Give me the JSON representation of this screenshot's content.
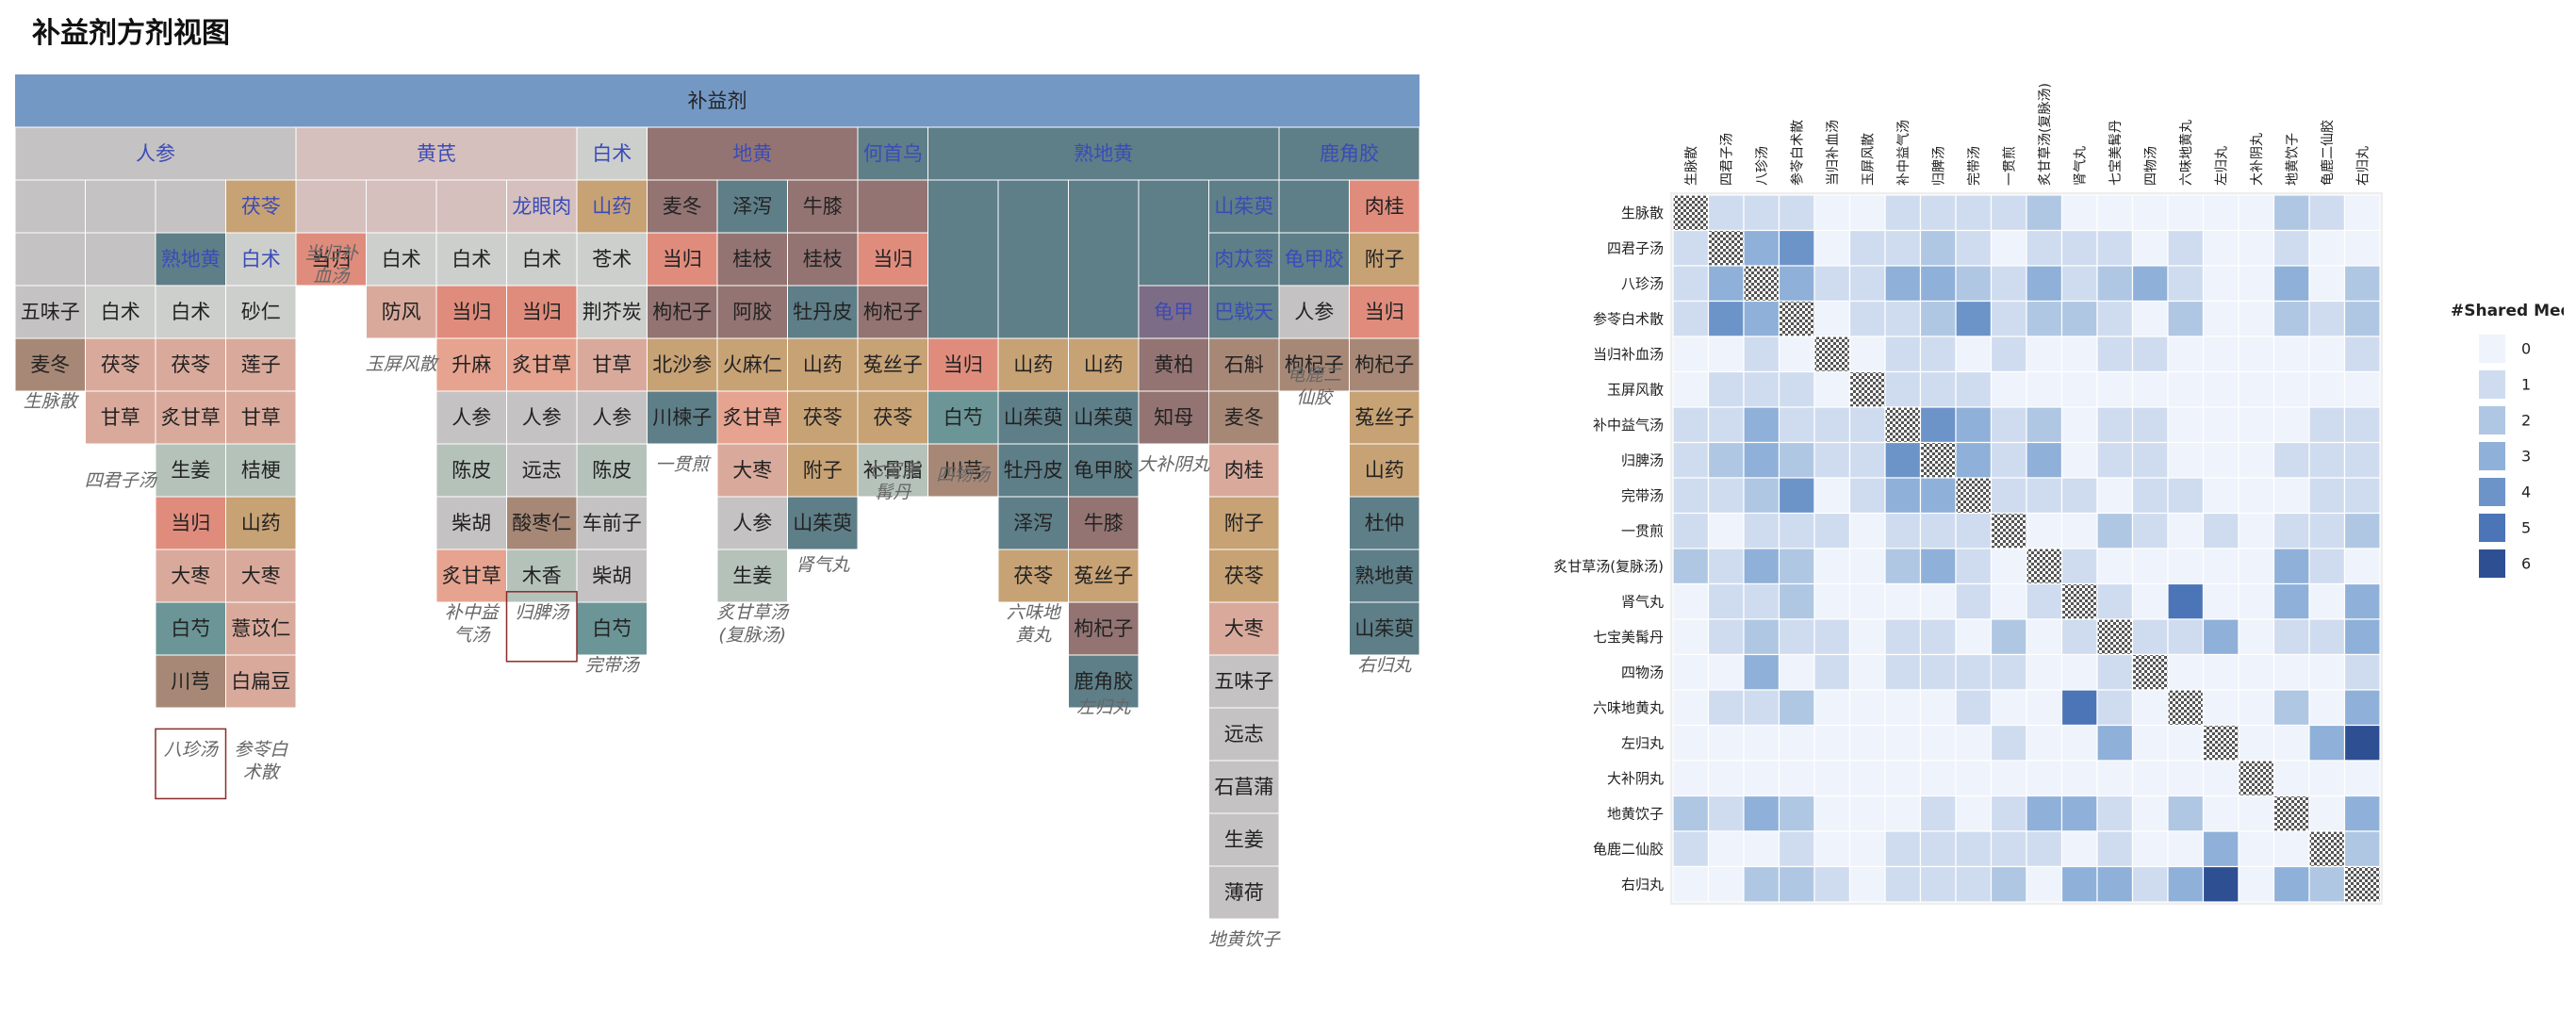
{
  "title": "补益剂方剂视图",
  "highlight_formula": "八珍汤",
  "chart_data": [
    {
      "type": "table",
      "name": "formula-herb-hierarchy",
      "root": "补益剂",
      "colors": {
        "root": "#7498c4",
        "gray": "#c4c2c2",
        "lightgray": "#cdcfcd",
        "pink": "#d5c0bd",
        "taupe": "#937472",
        "slate": "#5e7e88",
        "teal": "#6b9597",
        "tan": "#c7a275",
        "coral": "#e08c7c",
        "salmon": "#e6a38f",
        "rose": "#d9aa9c",
        "sage": "#b5c2b9",
        "brownish": "#a78877",
        "darkpurple": "#7d6c85",
        "gridline": "#ffffff",
        "text_dark": "#222222",
        "text_blue": "#3b4bb8",
        "highlight_border": "#8a2b2b"
      },
      "level2_groups": [
        {
          "label": "人参",
          "span": [
            0,
            4
          ]
        },
        {
          "label": "黄芪",
          "span": [
            4,
            8
          ]
        },
        {
          "label": "白术",
          "span": [
            8,
            9
          ]
        },
        {
          "label": "地黄",
          "span": [
            9,
            12
          ]
        },
        {
          "label": "何首乌",
          "span": [
            12,
            13
          ]
        },
        {
          "label": "熟地黄",
          "span": [
            13,
            18
          ]
        },
        {
          "label": "鹿角胶",
          "span": [
            18,
            20
          ]
        }
      ],
      "formulas": [
        {
          "name": "生脉散",
          "herbs": [
            "五味子",
            "麦冬"
          ]
        },
        {
          "name": "四君子汤",
          "herbs": [
            "白术",
            "茯苓",
            "甘草"
          ]
        },
        {
          "name": "八珍汤",
          "herbs": [
            "熟地黄",
            "白术",
            "茯苓",
            "炙甘草",
            "生姜",
            "当归",
            "大枣",
            "白芍",
            "川芎"
          ]
        },
        {
          "name": "参苓白术散",
          "herbs": [
            "茯苓",
            "白术",
            "砂仁",
            "莲子",
            "甘草",
            "桔梗",
            "山药",
            "大枣",
            "薏苡仁",
            "白扁豆"
          ]
        },
        {
          "name": "当归补血汤",
          "herbs": [
            "当归"
          ]
        },
        {
          "name": "玉屏风散",
          "herbs": [
            "白术",
            "防风"
          ]
        },
        {
          "name": "补中益气汤",
          "herbs": [
            "当归",
            "升麻",
            "人参",
            "陈皮",
            "柴胡",
            "炙甘草"
          ]
        },
        {
          "name": "归脾汤",
          "herbs": [
            "龙眼肉",
            "白术",
            "当归",
            "炙甘草",
            "人参",
            "远志",
            "酸枣仁",
            "木香"
          ]
        },
        {
          "name": "完带汤",
          "herbs": [
            "山药",
            "苍术",
            "荆芥炭",
            "甘草",
            "人参",
            "陈皮",
            "车前子",
            "柴胡",
            "白芍"
          ]
        },
        {
          "name": "一贯煎",
          "herbs": [
            "麦冬",
            "当归",
            "枸杞子",
            "北沙参",
            "川楝子"
          ]
        },
        {
          "name": "炙甘草汤(复脉汤)",
          "herbs": [
            "桂枝",
            "阿胶",
            "炙甘草",
            "火麻仁",
            "大枣",
            "人参",
            "生姜"
          ]
        },
        {
          "name": "肾气丸",
          "herbs": [
            "泽泻",
            "桂枝",
            "牡丹皮",
            "山药",
            "茯苓",
            "附子",
            "山茱萸"
          ]
        },
        {
          "name": "七宝美髯丹",
          "herbs": [
            "牛膝",
            "当归",
            "枸杞子",
            "菟丝子",
            "茯苓",
            "补骨脂"
          ]
        },
        {
          "name": "四物汤",
          "herbs": [
            "当归",
            "白芍",
            "川芎"
          ]
        },
        {
          "name": "六味地黄丸",
          "herbs": [
            "山药",
            "山茱萸",
            "牡丹皮",
            "泽泻",
            "茯苓"
          ]
        },
        {
          "name": "左归丸",
          "herbs": [
            "龟甲胶",
            "牛膝",
            "菟丝子",
            "枸杞子",
            "鹿角胶"
          ]
        },
        {
          "name": "大补阴丸",
          "herbs": [
            "龟甲",
            "黄柏",
            "知母"
          ]
        },
        {
          "name": "地黄饮子",
          "herbs": [
            "山茱萸",
            "肉苁蓉",
            "巴戟天",
            "石斛",
            "麦冬",
            "肉桂",
            "附子",
            "茯苓",
            "大枣",
            "五味子",
            "远志",
            "石菖蒲",
            "生姜",
            "薄荷"
          ]
        },
        {
          "name": "龟鹿二仙胶",
          "herbs": [
            "人参",
            "枸杞子"
          ]
        },
        {
          "name": "右归丸",
          "herbs": [
            "肉桂",
            "附子",
            "当归",
            "枸杞子",
            "菟丝子",
            "山药",
            "杜仲",
            "熟地黄",
            "山茱萸"
          ]
        }
      ]
    },
    {
      "type": "heatmap",
      "name": "shared-medicines-matrix",
      "legend_title": "#Shared Medicines",
      "legend_values": [
        0,
        1,
        2,
        3,
        4,
        5,
        6
      ],
      "legend_colors": [
        "#eff3fb",
        "#cfdcef",
        "#afc7e3",
        "#8fb0d8",
        "#6c94c8",
        "#4b75b6",
        "#2e4f92"
      ],
      "labels": [
        "生脉散",
        "四君子汤",
        "八珍汤",
        "参苓白术散",
        "当归补血汤",
        "玉屏风散",
        "补中益气汤",
        "归脾汤",
        "完带汤",
        "一贯煎",
        "炙甘草汤(复脉汤)",
        "肾气丸",
        "七宝美髯丹",
        "四物汤",
        "六味地黄丸",
        "左归丸",
        "大补阴丸",
        "地黄饮子",
        "龟鹿二仙胶",
        "右归丸"
      ],
      "highlight_label": "八珍汤",
      "highlight_color": "#e02020",
      "diagonal": "hatched",
      "matrix": [
        [
          -1,
          1,
          1,
          1,
          0,
          0,
          1,
          1,
          1,
          1,
          2,
          0,
          0,
          0,
          0,
          0,
          0,
          2,
          1,
          0
        ],
        [
          1,
          -1,
          3,
          4,
          0,
          1,
          1,
          2,
          1,
          0,
          1,
          1,
          1,
          0,
          1,
          0,
          0,
          1,
          0,
          0
        ],
        [
          1,
          3,
          -1,
          3,
          1,
          1,
          3,
          3,
          2,
          1,
          3,
          1,
          2,
          3,
          1,
          0,
          0,
          3,
          0,
          2
        ],
        [
          1,
          4,
          3,
          -1,
          0,
          1,
          1,
          2,
          4,
          1,
          2,
          2,
          1,
          0,
          2,
          0,
          0,
          2,
          1,
          2
        ],
        [
          0,
          0,
          1,
          0,
          -1,
          0,
          1,
          1,
          0,
          1,
          0,
          0,
          1,
          1,
          0,
          0,
          0,
          0,
          0,
          1
        ],
        [
          0,
          1,
          1,
          1,
          0,
          -1,
          1,
          1,
          1,
          0,
          0,
          0,
          0,
          0,
          0,
          0,
          0,
          0,
          0,
          0
        ],
        [
          1,
          1,
          3,
          1,
          1,
          1,
          -1,
          4,
          3,
          1,
          2,
          0,
          1,
          1,
          0,
          0,
          0,
          0,
          1,
          1
        ],
        [
          1,
          2,
          3,
          2,
          1,
          1,
          4,
          -1,
          3,
          1,
          3,
          0,
          1,
          1,
          0,
          0,
          0,
          1,
          1,
          1
        ],
        [
          1,
          1,
          2,
          4,
          0,
          1,
          3,
          3,
          -1,
          1,
          1,
          1,
          0,
          1,
          1,
          0,
          0,
          0,
          1,
          1
        ],
        [
          1,
          0,
          1,
          1,
          1,
          0,
          1,
          1,
          1,
          -1,
          0,
          0,
          2,
          1,
          0,
          1,
          0,
          1,
          1,
          2
        ],
        [
          2,
          1,
          3,
          2,
          0,
          0,
          2,
          3,
          1,
          0,
          -1,
          1,
          0,
          0,
          0,
          0,
          0,
          3,
          1,
          0
        ],
        [
          0,
          1,
          1,
          2,
          0,
          0,
          0,
          0,
          1,
          0,
          1,
          -1,
          1,
          0,
          5,
          0,
          0,
          3,
          0,
          3
        ],
        [
          0,
          1,
          2,
          1,
          1,
          0,
          1,
          1,
          0,
          2,
          0,
          1,
          -1,
          1,
          1,
          3,
          0,
          1,
          1,
          3
        ],
        [
          0,
          0,
          3,
          0,
          1,
          0,
          1,
          1,
          1,
          1,
          0,
          0,
          1,
          -1,
          0,
          0,
          0,
          0,
          0,
          1
        ],
        [
          0,
          1,
          1,
          2,
          0,
          0,
          0,
          0,
          1,
          0,
          0,
          5,
          1,
          0,
          -1,
          0,
          0,
          2,
          0,
          3
        ],
        [
          0,
          0,
          0,
          0,
          0,
          0,
          0,
          0,
          0,
          1,
          0,
          0,
          3,
          0,
          0,
          -1,
          0,
          0,
          3,
          6
        ],
        [
          0,
          0,
          0,
          0,
          0,
          0,
          0,
          0,
          0,
          0,
          0,
          0,
          0,
          0,
          0,
          0,
          -1,
          0,
          0,
          0
        ],
        [
          2,
          1,
          3,
          2,
          0,
          0,
          0,
          1,
          0,
          1,
          3,
          3,
          1,
          0,
          2,
          0,
          0,
          -1,
          0,
          3
        ],
        [
          1,
          0,
          0,
          1,
          0,
          0,
          1,
          1,
          1,
          1,
          1,
          0,
          1,
          0,
          0,
          3,
          0,
          0,
          -1,
          2
        ],
        [
          0,
          0,
          2,
          2,
          1,
          0,
          1,
          1,
          1,
          2,
          0,
          3,
          3,
          1,
          3,
          6,
          0,
          3,
          2,
          -1
        ]
      ]
    }
  ]
}
